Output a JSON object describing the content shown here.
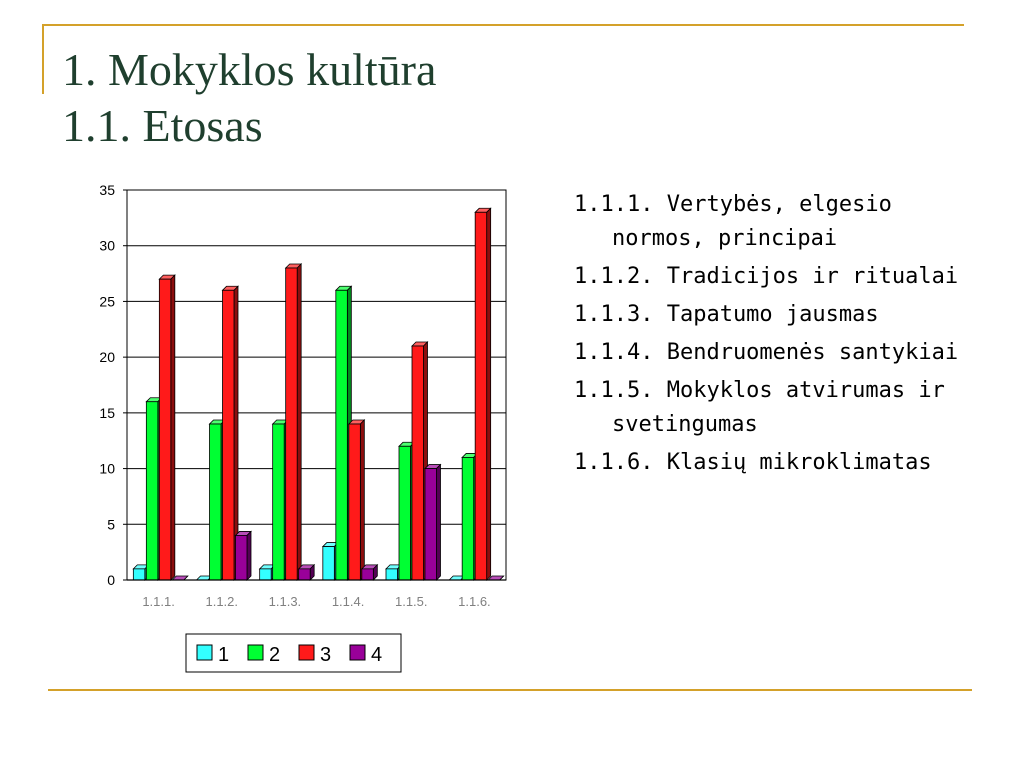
{
  "slide": {
    "title_line1": "1. Mokyklos kultūra",
    "title_line2": "1.1. Etosas",
    "accent_color": "#d4a12a",
    "title_color": "#1f3f2e"
  },
  "list": [
    "1.1.1. Vertybės, elgesio normos, principai",
    "1.1.2. Tradicijos ir ritualai",
    "1.1.3. Tapatumo jausmas",
    "1.1.4. Bendruomenės santykiai",
    "1.1.5. Mokyklos atvirumas ir svetingumas",
    "1.1.6. Klasių mikroklimatas"
  ],
  "chart_data": {
    "type": "bar",
    "title": "",
    "xlabel": "",
    "ylabel": "",
    "categories": [
      "1.1.1.",
      "1.1.2.",
      "1.1.3.",
      "1.1.4.",
      "1.1.5.",
      "1.1.6."
    ],
    "series": [
      {
        "name": "1",
        "color": "#33ffff",
        "values": [
          1,
          0,
          1,
          3,
          1,
          0
        ]
      },
      {
        "name": "2",
        "color": "#00ff33",
        "values": [
          16,
          14,
          14,
          26,
          12,
          11
        ]
      },
      {
        "name": "3",
        "color": "#ff1a1a",
        "values": [
          27,
          26,
          28,
          14,
          21,
          33
        ]
      },
      {
        "name": "4",
        "color": "#990099",
        "values": [
          0,
          4,
          1,
          1,
          10,
          0
        ]
      }
    ],
    "ylim": [
      0,
      35
    ],
    "yticks": [
      0,
      5,
      10,
      15,
      20,
      25,
      30,
      35
    ],
    "grid": true,
    "legend_position": "bottom"
  }
}
